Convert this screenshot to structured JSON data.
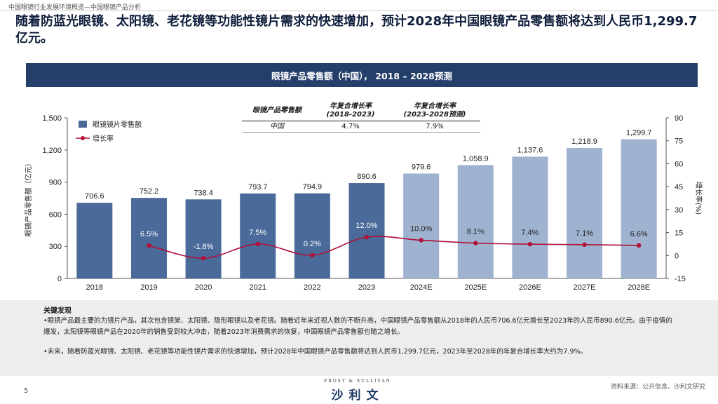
{
  "breadcrumb": "中国眼镜行业发展环境概览—中国眼镜产品分析",
  "headline": "随着防蓝光眼镜、太阳镜、老花镜等功能性镜片需求的快速增加，预计2028年中国眼镜产品零售额将达到人民币1,299.7亿元。",
  "banner": "眼镜产品零售额（中国），  2018 – 2028预测",
  "cagr_table": {
    "header": [
      "眼镜产品零售额",
      "年复合增长率\n(2018-2023)",
      "年复合增长率\n(2023-2028预测)"
    ],
    "row": [
      "中国",
      "4.7%",
      "7.9%"
    ]
  },
  "chart_data": {
    "type": "bar",
    "title": "眼镜产品零售额（中国），  2018 – 2028预测",
    "categories": [
      "2018",
      "2019",
      "2020",
      "2021",
      "2022",
      "2023",
      "2024E",
      "2025E",
      "2026E",
      "2027E",
      "2028E"
    ],
    "series": [
      {
        "name": "眼镜镜片零售额",
        "type": "bar",
        "values": [
          706.6,
          752.2,
          738.4,
          793.7,
          794.9,
          890.6,
          979.6,
          1058.9,
          1137.6,
          1218.9,
          1299.7
        ],
        "labels": [
          "706.6",
          "752.2",
          "738.4",
          "793.7",
          "794.9",
          "890.6",
          "979.6",
          "1,058.9",
          "1,137.6",
          "1,218.9",
          "1,299.7"
        ],
        "axis": "left"
      },
      {
        "name": "增长率",
        "type": "line",
        "values": [
          null,
          6.5,
          -1.8,
          7.5,
          0.2,
          12.0,
          10.0,
          8.1,
          7.4,
          7.1,
          6.6
        ],
        "labels": [
          "",
          "6.5%",
          "-1.8%",
          "7.5%",
          "0.2%",
          "12.0%",
          "10.0%",
          "8.1%",
          "7.4%",
          "7.1%",
          "6.6%"
        ],
        "axis": "right"
      }
    ],
    "ylabel": "眼镜产品零售额（亿元）",
    "y2label": "增长率(%)",
    "ylim": [
      0,
      1500
    ],
    "yticks": [
      0,
      300,
      600,
      900,
      1200,
      1500
    ],
    "ytick_labels": [
      "0",
      "300",
      "600",
      "900",
      "1,200",
      "1,500"
    ],
    "y2lim": [
      -15,
      90
    ],
    "y2ticks": [
      -15,
      0,
      15,
      30,
      45,
      60,
      75,
      90
    ],
    "colors": {
      "actual": "#4a6a99",
      "forecast": "#9fb3d0",
      "line": "#b0103a"
    },
    "legend": "top-left"
  },
  "findings": {
    "title": "关键发现",
    "p1": "•眼镜产品最主要的为镜片产品，其次包含镜架、太阳镜、隐形眼镜以及老花镜。随着近年来近视人数的不断升高，中国眼镜产品零售额从2018年的人民币706.6亿元增长至2023年的人民币890.6亿元。由于疫情的爆发，太阳镜等眼镜产品在2020年的销售受到较大冲击，随着2023年消费需求的恢复，中国眼镜产品零售额也随之增长。",
    "p2": "•未来，随着防蓝光眼镜、太阳镜、老花镜等功能性镜片需求的快速增加，预计2028年中国眼镜产品零售额将达到人民币1,299.7亿元，2023年至2028年的年复合增长率大约为7.9%。"
  },
  "footer": {
    "page": "5",
    "logo_en": "FROST & SULLIVAN",
    "logo_cn": "沙利文",
    "source": "资料来源：公开信息、沙利文研究"
  }
}
